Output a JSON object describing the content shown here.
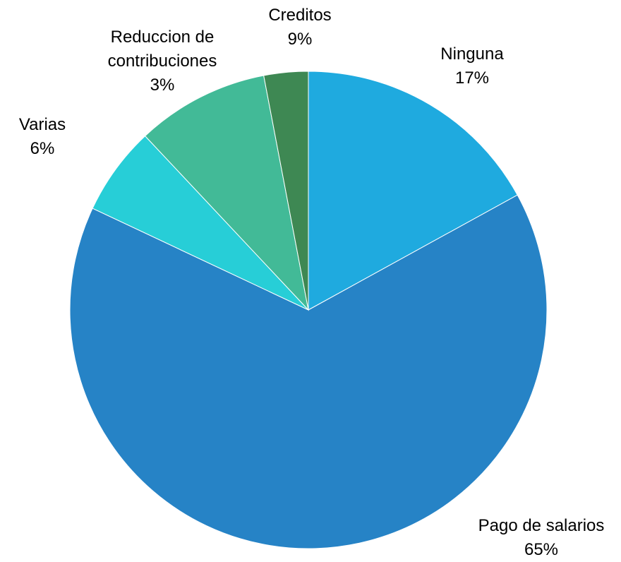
{
  "chart_data": {
    "type": "pie",
    "categories": [
      "Ninguna",
      "Pago de salarios",
      "Varias",
      "Creditos",
      "Reduccion de contribuciones"
    ],
    "values": [
      17,
      65,
      6,
      9,
      3
    ],
    "value_labels": [
      "17%",
      "65%",
      "6%",
      "9%",
      "3%"
    ],
    "colors": [
      "#1FAADF",
      "#2683C6",
      "#27CED7",
      "#42BA97",
      "#3E8853"
    ]
  }
}
